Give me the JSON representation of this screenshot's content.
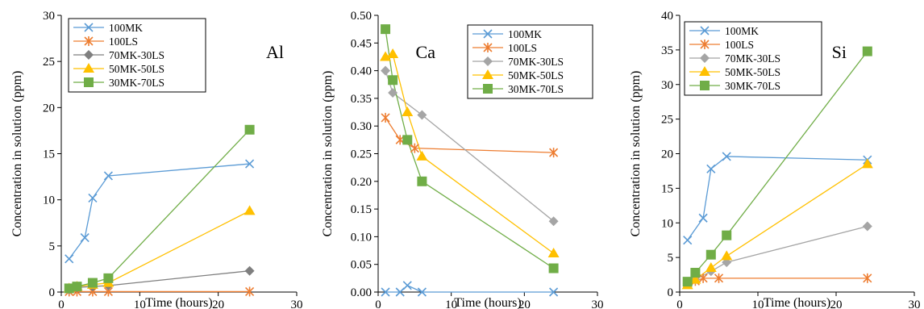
{
  "chart_data": [
    {
      "type": "line",
      "annotation": "Al",
      "xlabel": "Time (hours)",
      "ylabel": "Concentration in solution (ppm)",
      "xlim": [
        0,
        30
      ],
      "ylim": [
        0,
        30
      ],
      "xticks": [
        "0",
        "10",
        "20",
        "30"
      ],
      "yticks": [
        "0",
        "5",
        "10",
        "15",
        "20",
        "25",
        "30"
      ],
      "legend_position": "top-left",
      "series": [
        {
          "name": "100MK",
          "color": "#5B9BD5",
          "marker": "x",
          "x": [
            1,
            3,
            4,
            6,
            24
          ],
          "y": [
            3.6,
            5.9,
            10.2,
            12.6,
            13.9
          ]
        },
        {
          "name": "100LS",
          "color": "#ED7D31",
          "marker": "asterisk",
          "x": [
            1,
            2,
            4,
            6,
            24
          ],
          "y": [
            0.05,
            0.05,
            0.05,
            0.05,
            0.05
          ]
        },
        {
          "name": "70MK-30LS",
          "color": "#7F7F7F",
          "marker": "diamond",
          "x": [
            1,
            2,
            4,
            6,
            24
          ],
          "y": [
            0.3,
            0.5,
            0.6,
            0.7,
            2.3
          ]
        },
        {
          "name": "50MK-50LS",
          "color": "#FFC000",
          "marker": "triangle",
          "x": [
            1,
            2,
            4,
            6,
            24
          ],
          "y": [
            0.4,
            0.6,
            0.8,
            1.0,
            8.8
          ]
        },
        {
          "name": "30MK-70LS",
          "color": "#70AD47",
          "marker": "square",
          "x": [
            1,
            2,
            4,
            6,
            24
          ],
          "y": [
            0.4,
            0.6,
            1.0,
            1.5,
            17.6
          ]
        }
      ]
    },
    {
      "type": "line",
      "annotation": "Ca",
      "xlabel": "Time (hours)",
      "ylabel": "Concentration in solution (ppm)",
      "xlim": [
        0,
        30
      ],
      "ylim": [
        0,
        0.5
      ],
      "xticks": [
        "0",
        "10",
        "20",
        "30"
      ],
      "yticks": [
        "0.00",
        "0.05",
        "0.10",
        "0.15",
        "0.20",
        "0.25",
        "0.30",
        "0.35",
        "0.40",
        "0.45",
        "0.50"
      ],
      "legend_position": "top-right",
      "series": [
        {
          "name": "100MK",
          "color": "#5B9BD5",
          "marker": "x",
          "x": [
            1,
            3,
            4,
            6,
            24
          ],
          "y": [
            0.0,
            0.0,
            0.012,
            0.0,
            0.0
          ]
        },
        {
          "name": "100LS",
          "color": "#ED7D31",
          "marker": "asterisk",
          "x": [
            1,
            3,
            5,
            24
          ],
          "y": [
            0.315,
            0.275,
            0.26,
            0.252
          ]
        },
        {
          "name": "70MK-30LS",
          "color": "#A5A5A5",
          "marker": "diamond",
          "x": [
            1,
            2,
            6,
            24
          ],
          "y": [
            0.4,
            0.36,
            0.32,
            0.128
          ]
        },
        {
          "name": "50MK-50LS",
          "color": "#FFC000",
          "marker": "triangle",
          "x": [
            1,
            2,
            4,
            6,
            24
          ],
          "y": [
            0.425,
            0.43,
            0.325,
            0.245,
            0.07
          ]
        },
        {
          "name": "30MK-70LS",
          "color": "#70AD47",
          "marker": "square",
          "x": [
            1,
            2,
            4,
            6,
            24
          ],
          "y": [
            0.475,
            0.383,
            0.275,
            0.2,
            0.043
          ]
        }
      ]
    },
    {
      "type": "line",
      "annotation": "Si",
      "xlabel": "Time (hours)",
      "ylabel": "Concentration in solution (ppm)",
      "xlim": [
        0,
        30
      ],
      "ylim": [
        0,
        40
      ],
      "xticks": [
        "0",
        "10",
        "20",
        "30"
      ],
      "yticks": [
        "0",
        "5",
        "10",
        "15",
        "20",
        "25",
        "30",
        "35",
        "40"
      ],
      "legend_position": "top-left",
      "series": [
        {
          "name": "100MK",
          "color": "#5B9BD5",
          "marker": "x",
          "x": [
            1,
            3,
            4,
            6,
            24
          ],
          "y": [
            7.5,
            10.7,
            17.8,
            19.6,
            19.1
          ]
        },
        {
          "name": "100LS",
          "color": "#ED7D31",
          "marker": "asterisk",
          "x": [
            1,
            2,
            3,
            5,
            24
          ],
          "y": [
            1.3,
            1.6,
            2.0,
            2.0,
            2.0
          ]
        },
        {
          "name": "70MK-30LS",
          "color": "#A5A5A5",
          "marker": "diamond",
          "x": [
            1,
            2,
            4,
            6,
            24
          ],
          "y": [
            1.2,
            1.8,
            3.0,
            4.3,
            9.5
          ]
        },
        {
          "name": "50MK-50LS",
          "color": "#FFC000",
          "marker": "triangle",
          "x": [
            1,
            2,
            4,
            6,
            24
          ],
          "y": [
            1.0,
            1.8,
            3.5,
            5.2,
            18.5
          ]
        },
        {
          "name": "30MK-70LS",
          "color": "#70AD47",
          "marker": "square",
          "x": [
            1,
            2,
            4,
            6,
            24
          ],
          "y": [
            1.5,
            2.8,
            5.4,
            8.2,
            34.8
          ]
        }
      ]
    }
  ]
}
